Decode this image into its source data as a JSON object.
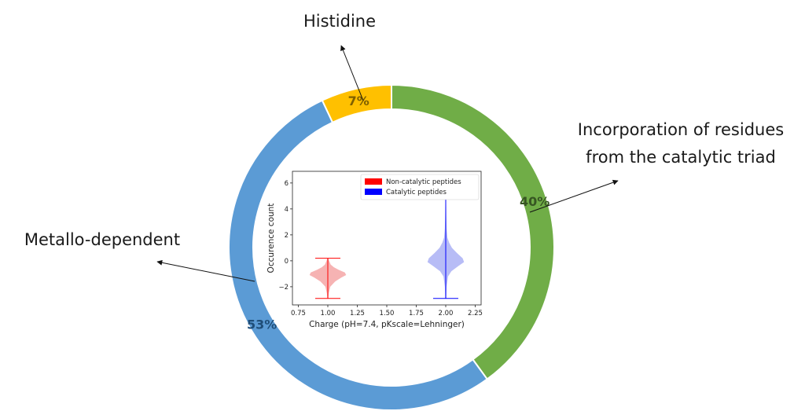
{
  "chart_data": [
    {
      "type": "pie",
      "variant": "donut",
      "slices": [
        {
          "label": "Incorporation of residues from the catalytic triad",
          "value": 40,
          "value_label": "40%",
          "color": "#70ad47",
          "label_color": "#375623"
        },
        {
          "label": "Metallo-dependent",
          "value": 53,
          "value_label": "53%",
          "color": "#5b9bd5",
          "label_color": "#1f4e79"
        },
        {
          "label": "Histidine",
          "value": 7,
          "value_label": "7%",
          "color": "#ffc000",
          "label_color": "#7f6000"
        }
      ],
      "callouts": {
        "histidine": "Histidine",
        "triad_line1": "Incorporation of residues",
        "triad_line2": "from the catalytic triad",
        "metallo": "Metallo-dependent"
      }
    },
    {
      "type": "violin",
      "xlabel": "Charge (pH=7.4, pKscale=Lehninger)",
      "ylabel": "Occurence count",
      "xlim": [
        0.7,
        2.3
      ],
      "ylim": [
        -3.4,
        6.9
      ],
      "xticks": [
        0.75,
        1.0,
        1.25,
        1.5,
        1.75,
        2.0,
        2.25
      ],
      "xtick_labels": [
        "0.75",
        "1.00",
        "1.25",
        "1.50",
        "1.75",
        "2.00",
        "2.25"
      ],
      "yticks": [
        -2,
        0,
        2,
        4,
        6
      ],
      "ytick_labels": [
        "−2",
        "0",
        "2",
        "4",
        "6"
      ],
      "series": [
        {
          "name": "Non-catalytic peptides",
          "position": 1.0,
          "min": -2.9,
          "max": 0.2,
          "color": "#ff0000",
          "fill": "#f4a6a6",
          "density": [
            [
              -2.9,
              0.02
            ],
            [
              -2.5,
              0.04
            ],
            [
              -2.0,
              0.1
            ],
            [
              -1.6,
              0.3
            ],
            [
              -1.3,
              0.55
            ],
            [
              -1.1,
              0.75
            ],
            [
              -0.9,
              0.7
            ],
            [
              -0.7,
              0.45
            ],
            [
              -0.5,
              0.25
            ],
            [
              -0.3,
              0.12
            ],
            [
              0.0,
              0.05
            ],
            [
              0.2,
              0.02
            ]
          ]
        },
        {
          "name": "Catalytic peptides",
          "position": 2.0,
          "min": -2.9,
          "max": 4.8,
          "color": "#0000ff",
          "fill": "#aab0f5",
          "density": [
            [
              -2.9,
              0.02
            ],
            [
              -2.0,
              0.03
            ],
            [
              -1.2,
              0.08
            ],
            [
              -0.8,
              0.2
            ],
            [
              -0.4,
              0.45
            ],
            [
              -0.1,
              0.65
            ],
            [
              0.2,
              0.6
            ],
            [
              0.6,
              0.4
            ],
            [
              1.0,
              0.22
            ],
            [
              1.4,
              0.12
            ],
            [
              1.8,
              0.06
            ],
            [
              2.5,
              0.03
            ],
            [
              3.5,
              0.02
            ],
            [
              4.8,
              0.01
            ]
          ]
        }
      ]
    }
  ]
}
